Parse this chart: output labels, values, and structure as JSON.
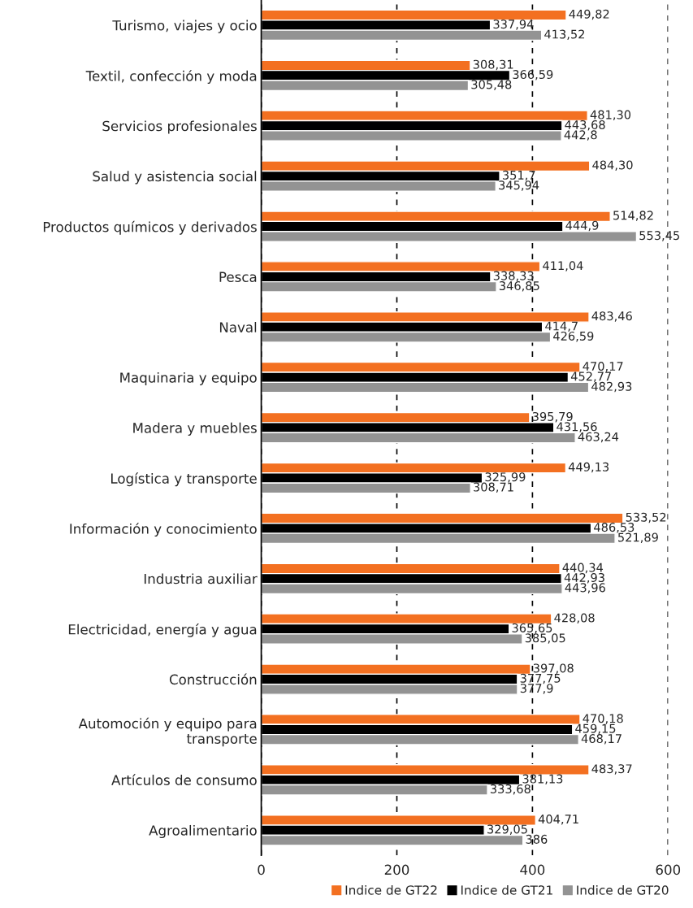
{
  "chart_data": {
    "type": "bar",
    "orientation": "horizontal",
    "categories": [
      "Turismo, viajes y ocio",
      "Textil, confección y moda",
      "Servicios profesionales",
      "Salud y asistencia social",
      "Productos químicos y derivados",
      "Pesca",
      "Naval",
      "Maquinaria y equipo",
      "Madera y muebles",
      "Logística y transporte",
      "Información y conocimiento",
      "Industria auxiliar",
      "Electricidad, energía y agua",
      "Construcción",
      "Automoción y equipo para\ntransporte",
      "Artículos de consumo",
      "Agroalimentario"
    ],
    "series": [
      {
        "name": "Indice de GT22",
        "color": "#f37021",
        "values": [
          449.82,
          308.31,
          481.3,
          484.3,
          514.82,
          411.04,
          483.46,
          470.17,
          395.79,
          449.13,
          533.52,
          440.34,
          428.08,
          397.08,
          470.18,
          483.37,
          404.71
        ],
        "value_labels": [
          "449,82",
          "308,31",
          "481,30",
          "484,30",
          "514,82",
          "411,04",
          "483,46",
          "470,17",
          "395,79",
          "449,13",
          "533,52",
          "440,34",
          "428,08",
          "397,08",
          "470,18",
          "483,37",
          "404,71"
        ]
      },
      {
        "name": "Indice de GT21",
        "color": "#000000",
        "values": [
          337.94,
          366.59,
          443.68,
          351.7,
          444.9,
          338.33,
          414.7,
          452.77,
          431.56,
          325.99,
          486.53,
          442.93,
          365.65,
          377.75,
          459.15,
          381.13,
          329.05
        ],
        "value_labels": [
          "337,94",
          "366,59",
          "443,68",
          "351,7",
          "444,9",
          "338,33",
          "414,7",
          "452,77",
          "431,56",
          "325,99",
          "486,53",
          "442,93",
          "365,65",
          "377,75",
          "459,15",
          "381,13",
          "329,05"
        ]
      },
      {
        "name": "Indice de GT20",
        "color": "#939393",
        "values": [
          413.52,
          305.48,
          442.8,
          345.94,
          553.45,
          346.85,
          426.59,
          482.93,
          463.24,
          308.71,
          521.89,
          443.96,
          385.05,
          377.9,
          468.17,
          333.68,
          386
        ],
        "value_labels": [
          "413,52",
          "305,48",
          "442,8",
          "345,94",
          "553,45",
          "346,85",
          "426,59",
          "482,93",
          "463,24",
          "308,71",
          "521,89",
          "443,96",
          "385,05",
          "377,9",
          "468,17",
          "333,68",
          "386"
        ]
      }
    ],
    "xlim": [
      0,
      600
    ],
    "xticks": [
      0,
      200,
      400,
      600
    ],
    "grid": "x",
    "legend": "bottom right"
  }
}
